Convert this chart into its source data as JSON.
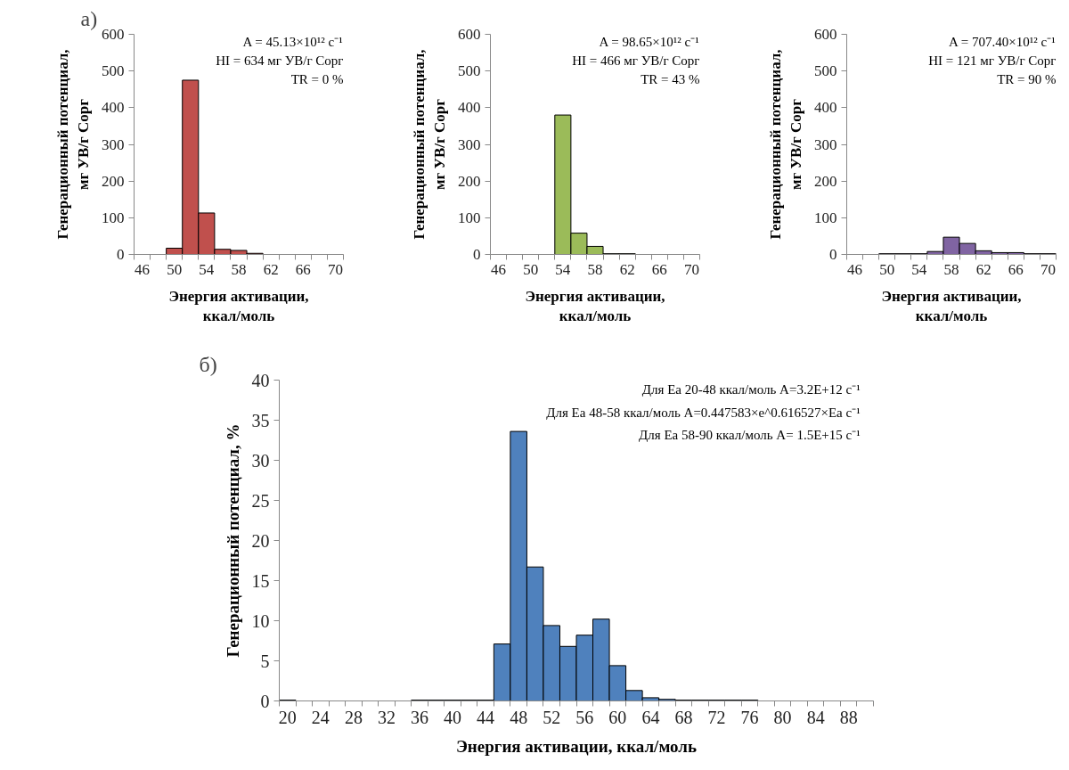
{
  "chart_data": [
    {
      "type": "bar",
      "title": "а)",
      "xlabel": "Энергия активации, ккал/моль",
      "ylabel": "Генерационный потенциал, мг УВ/г Сорг",
      "categories": [
        "46",
        null,
        "50",
        null,
        "54",
        null,
        "58",
        null,
        "62",
        null,
        "66",
        null,
        "70"
      ],
      "values": [
        0,
        0,
        17,
        475,
        113,
        14,
        11,
        3,
        0,
        0,
        0,
        0,
        0
      ],
      "color": "#c0504d",
      "ylim": [
        0,
        600
      ],
      "yticks": [
        0,
        100,
        200,
        300,
        400,
        500,
        600
      ],
      "annotations": [
        "A = 45.13×10¹² с⁻¹",
        "HI = 634 мг УВ/г Сорг",
        "TR = 0 %"
      ]
    },
    {
      "type": "bar",
      "xlabel": "Энергия активации, ккал/моль",
      "ylabel": "Генерационный потенциал, мг УВ/г Сорг",
      "categories": [
        "46",
        null,
        "50",
        null,
        "54",
        null,
        "58",
        null,
        "62",
        null,
        "66",
        null,
        "70"
      ],
      "values": [
        0,
        0,
        0,
        0,
        380,
        58,
        22,
        2,
        2,
        0,
        0,
        0,
        0
      ],
      "color": "#9bbb59",
      "ylim": [
        0,
        600
      ],
      "yticks": [
        0,
        100,
        200,
        300,
        400,
        500,
        600
      ],
      "annotations": [
        "A = 98.65×10¹² с⁻¹",
        "HI = 466 мг УВ/г Сорг",
        "TR = 43 %"
      ]
    },
    {
      "type": "bar",
      "xlabel": "Энергия активации, ккал/моль",
      "ylabel": "Генерационный потенциал, мг УВ/г Сорг",
      "categories": [
        "46",
        null,
        "50",
        null,
        "54",
        null,
        "58",
        null,
        "62",
        null,
        "66",
        null,
        "70"
      ],
      "values": [
        0,
        0,
        2,
        2,
        2,
        8,
        47,
        30,
        10,
        5,
        5,
        2,
        2
      ],
      "color": "#8064a2",
      "ylim": [
        0,
        600
      ],
      "yticks": [
        0,
        100,
        200,
        300,
        400,
        500,
        600
      ],
      "annotations": [
        "A = 707.40×10¹² с⁻¹",
        "HI = 121 мг УВ/г Сорг",
        "TR = 90 %"
      ]
    },
    {
      "type": "bar",
      "title": "б)",
      "xlabel": "Энергия активации, ккал/моль",
      "ylabel": "Генерационный потенциал, %",
      "categories": [
        "20",
        null,
        "24",
        null,
        "28",
        null,
        "32",
        null,
        "36",
        null,
        "40",
        null,
        "44",
        null,
        "48",
        null,
        "52",
        null,
        "56",
        null,
        "60",
        null,
        "64",
        null,
        "68",
        null,
        "72",
        null,
        "76",
        null,
        "80",
        null,
        "84",
        null,
        "88",
        null
      ],
      "values": [
        0.1,
        0,
        0,
        0,
        0,
        0,
        0,
        0,
        0.1,
        0.1,
        0.1,
        0.1,
        0.1,
        7.1,
        33.6,
        16.7,
        9.4,
        6.8,
        8.2,
        10.2,
        4.4,
        1.3,
        0.4,
        0.2,
        0.1,
        0.1,
        0.1,
        0.1,
        0.1,
        0,
        0,
        0,
        0,
        0,
        0,
        0
      ],
      "color": "#4f81bd",
      "ylim": [
        0,
        40
      ],
      "yticks": [
        0,
        5,
        10,
        15,
        20,
        25,
        30,
        35,
        40
      ],
      "annotations": [
        "Для Ea 20-48 ккал/моль A=3.2E+12 с⁻¹",
        "Для Ea 48-58 ккал/моль A=0.447583×e^0.616527×Ea с⁻¹",
        "Для Ea 58-90 ккал/моль A= 1.5E+15 с⁻¹"
      ]
    }
  ]
}
